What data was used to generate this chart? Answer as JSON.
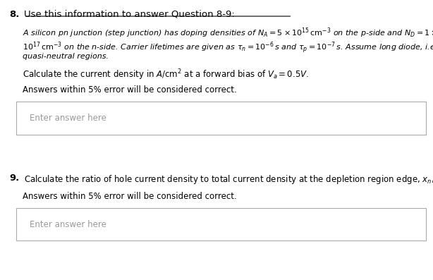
{
  "q8_label": "8.",
  "q8_header": "Use this information to answer Question 8-9:",
  "q8_body_line1": "A silicon pn junction (step junction) has doping densities of $N_A = 5 \\times 10^{15}\\,\\mathrm{cm}^{-3}$ on the p-side and $N_D = 1 \\times$",
  "q8_body_line2": "$10^{17}\\,\\mathrm{cm}^{-3}$ on the n-side. Carrier lifetimes are given as $\\tau_n = 10^{-6}\\,s$ and $\\tau_p = 10^{-7}\\,s$. Assume long diode, i.e. long",
  "q8_body_line3": "quasi-neutral regions.",
  "q8_calc": "Calculate the current density in $A/\\mathrm{cm}^2$ at a forward bias of $V_a = 0.5V$.",
  "q8_note": "Answers within 5% error will be considered correct.",
  "q8_input_label": "Enter answer here",
  "q9_label": "9.",
  "q9_calc": "Calculate the ratio of hole current density to total current density at the depletion region edge, $x_n$, on the n-side.",
  "q9_note": "Answers within 5% error will be considered correct.",
  "q9_input_label": "Enter answer here",
  "bg_color": "#ffffff",
  "box_edge_color": "#aaaaaa",
  "text_color": "#000000",
  "placeholder_color": "#999999"
}
